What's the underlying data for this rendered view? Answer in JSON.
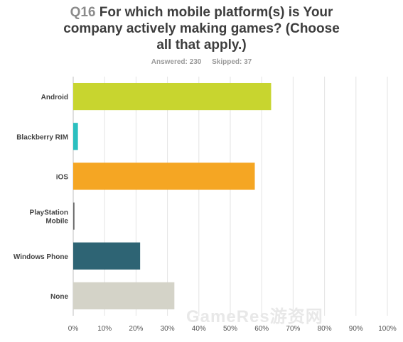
{
  "header": {
    "question_number": "Q16",
    "title_line1": "For which mobile platform(s) is Your",
    "title_line2": "company actively making games? (Choose",
    "title_line3": "all that apply.)",
    "answered": "Answered: 230",
    "skipped": "Skipped: 37"
  },
  "watermark": "GameRes游资网",
  "chart_data": {
    "type": "bar",
    "orientation": "horizontal",
    "categories": [
      "Android",
      "Blackberry RIM",
      "iOS",
      "PlayStation Mobile",
      "Windows Phone",
      "None"
    ],
    "category_lines": [
      [
        "Android"
      ],
      [
        "Blackberry RIM"
      ],
      [
        "iOS"
      ],
      [
        "PlayStation",
        "Mobile"
      ],
      [
        "Windows Phone"
      ],
      [
        "None"
      ]
    ],
    "values": [
      63.0,
      1.5,
      57.8,
      0.4,
      21.3,
      32.2
    ],
    "colors": [
      "#c8d52f",
      "#2bbfbf",
      "#f5a623",
      "#6b6b6b",
      "#2e6474",
      "#d4d3c8"
    ],
    "xlim": [
      0,
      100
    ],
    "x_ticks": [
      "0%",
      "10%",
      "20%",
      "30%",
      "40%",
      "50%",
      "60%",
      "70%",
      "80%",
      "90%",
      "100%"
    ],
    "grid": true,
    "legend": "none"
  }
}
